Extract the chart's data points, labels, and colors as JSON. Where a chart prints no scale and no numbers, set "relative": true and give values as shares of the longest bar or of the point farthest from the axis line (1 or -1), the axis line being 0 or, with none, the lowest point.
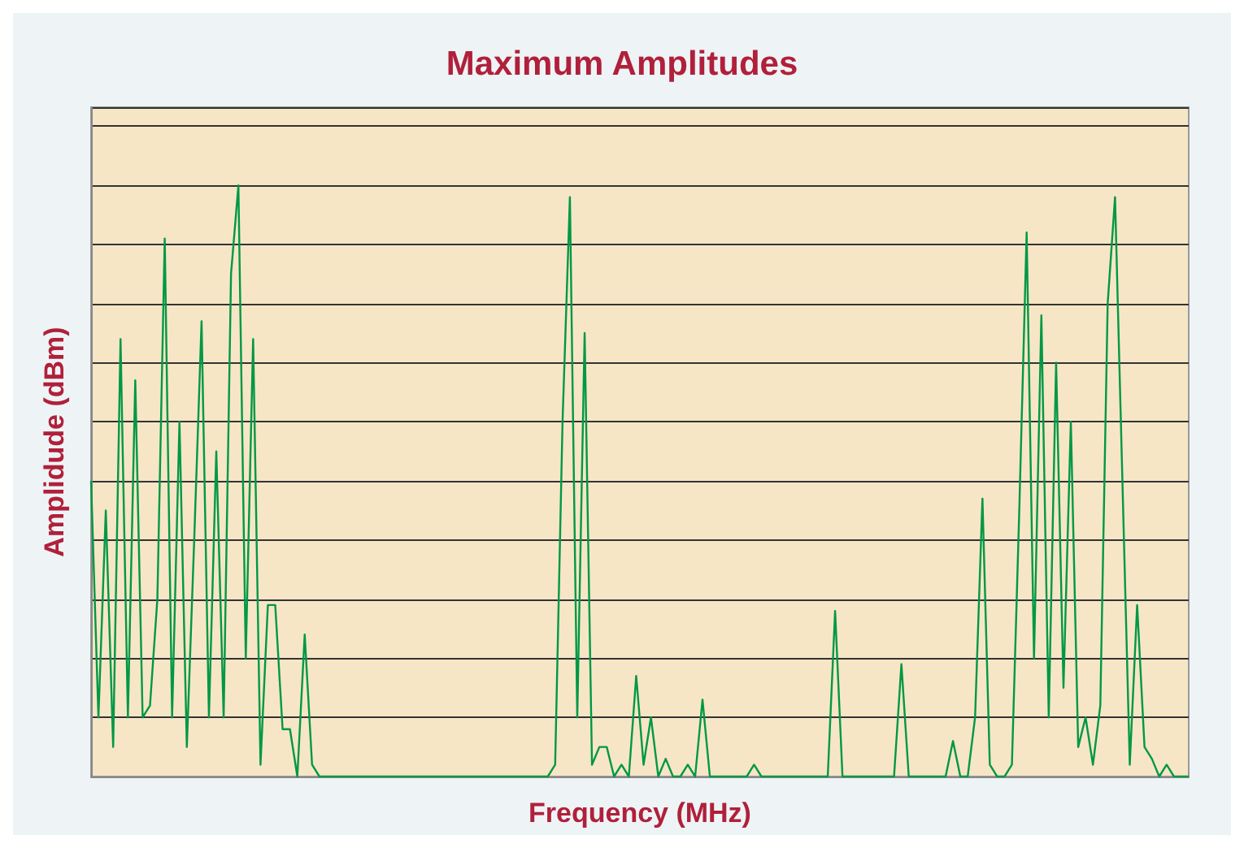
{
  "chart_data": {
    "type": "line",
    "title": "Maximum Amplitudes",
    "xlabel": "Frequency (MHz)",
    "ylabel": "Amplidude (dBm)",
    "relative": true,
    "grid": "y",
    "marker": "none",
    "line_style": "solid",
    "categories": [
      null,
      null,
      null,
      null,
      null,
      null,
      null,
      null,
      null,
      null,
      null,
      null,
      null,
      null,
      null,
      null,
      null,
      null,
      null,
      null,
      null,
      null,
      null,
      null,
      null,
      null,
      null,
      null,
      null,
      null,
      null,
      null,
      null,
      null,
      null,
      null,
      null,
      null,
      null,
      null,
      null,
      null,
      null,
      null,
      null,
      null,
      null,
      null,
      null,
      null,
      null,
      null,
      null,
      null,
      null,
      null,
      null,
      null,
      null,
      null,
      null,
      null,
      null,
      null,
      null,
      null,
      null,
      null,
      null,
      null,
      null,
      null,
      null,
      null,
      null,
      null,
      null,
      null,
      null,
      null,
      null,
      null,
      null,
      null,
      null,
      null,
      null,
      null,
      null,
      null,
      null,
      null,
      null,
      null,
      null,
      null,
      null,
      null,
      null,
      null,
      null,
      null,
      null,
      null,
      null,
      null,
      null,
      null,
      null,
      null,
      null,
      null,
      null,
      null,
      null,
      null,
      null,
      null,
      null,
      null,
      null,
      null,
      null,
      null,
      null,
      null,
      null,
      null,
      null,
      null,
      null,
      null,
      null,
      null,
      null,
      null,
      null,
      null,
      null,
      null,
      null,
      null,
      null,
      null,
      null,
      null,
      null,
      null,
      null,
      null
    ],
    "series": [
      {
        "color": "#009845",
        "values": [
          0.5,
          0.1,
          0.45,
          0.05,
          0.74,
          0.1,
          0.67,
          0.1,
          0.12,
          0.3,
          0.91,
          0.1,
          0.6,
          0.05,
          0.4,
          0.77,
          0.1,
          0.55,
          0.1,
          0.85,
          1,
          0.2,
          0.74,
          0.02,
          0.29,
          0.29,
          0.08,
          0.08,
          0,
          0.24,
          0.02,
          0,
          0,
          0,
          0,
          0,
          0,
          0,
          0,
          0,
          0,
          0,
          0,
          0,
          0,
          0,
          0,
          0,
          0,
          0,
          0,
          0,
          0,
          0,
          0,
          0,
          0,
          0,
          0,
          0,
          0,
          0,
          0,
          0.02,
          0.6,
          0.98,
          0.1,
          0.75,
          0.02,
          0.05,
          0.05,
          0,
          0.02,
          0,
          0.17,
          0.02,
          0.1,
          0,
          0.03,
          0,
          0,
          0.02,
          0,
          0.13,
          0,
          0,
          0,
          0,
          0,
          0,
          0.02,
          0,
          0,
          0,
          0,
          0,
          0,
          0,
          0,
          0,
          0,
          0.28,
          0,
          0,
          0,
          0,
          0,
          0,
          0,
          0,
          0.19,
          0,
          0,
          0,
          0,
          0,
          0,
          0.06,
          0,
          0,
          0.1,
          0.47,
          0.02,
          0,
          0,
          0.02,
          0.45,
          0.92,
          0.2,
          0.78,
          0.1,
          0.7,
          0.15,
          0.6,
          0.05,
          0.1,
          0.02,
          0.12,
          0.8,
          0.98,
          0.5,
          0.02,
          0.29,
          0.05,
          0.03,
          0,
          0.02,
          0,
          0,
          0
        ]
      }
    ]
  }
}
